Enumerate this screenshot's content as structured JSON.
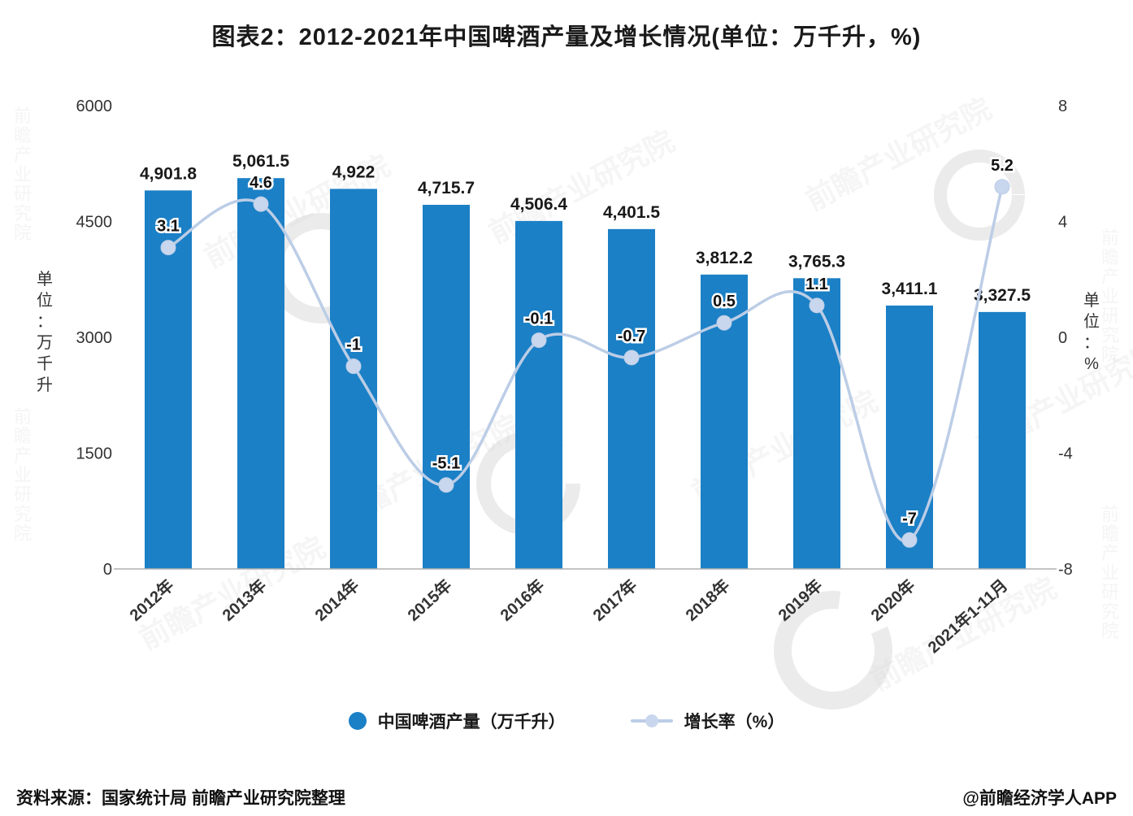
{
  "title": "图表2：2012-2021年中国啤酒产量及增长情况(单位：万千升，%)",
  "chart_data": {
    "type": "bar",
    "subtype": "bar+line combo, dual axis",
    "categories": [
      "2012年",
      "2013年",
      "2014年",
      "2015年",
      "2016年",
      "2017年",
      "2018年",
      "2019年",
      "2020年",
      "2021年1-11月"
    ],
    "series": [
      {
        "name": "中国啤酒产量（万千升）",
        "type": "bar",
        "axis": "left",
        "values": [
          4901.8,
          5061.5,
          4922,
          4715.7,
          4506.4,
          4401.5,
          3812.2,
          3765.3,
          3411.1,
          3327.5
        ],
        "labels": [
          "4,901.8",
          "5,061.5",
          "4,922",
          "4,715.7",
          "4,506.4",
          "4,401.5",
          "3,812.2",
          "3,765.3",
          "3,411.1",
          "3,327.5"
        ],
        "color": "#1b80c6"
      },
      {
        "name": "增长率（%）",
        "type": "line",
        "axis": "right",
        "values": [
          3.1,
          4.6,
          -1,
          -5.1,
          -0.1,
          -0.7,
          0.5,
          1.1,
          -7,
          5.2
        ],
        "labels": [
          "3.1",
          "4.6",
          "-1",
          "-5.1",
          "-0.1",
          "-0.7",
          "0.5",
          "1.1",
          "-7",
          "5.2"
        ],
        "color": "#bccde6",
        "marker_color": "#c8d6ee"
      }
    ],
    "left_axis": {
      "title": "单位：万千升",
      "min": 0,
      "max": 6000,
      "ticks": [
        0,
        1500,
        3000,
        4500,
        6000
      ],
      "tick_labels": [
        "0",
        "1500",
        "3000",
        "4500",
        "6000"
      ]
    },
    "right_axis": {
      "title": "单位：%",
      "min": -8,
      "max": 8,
      "ticks": [
        -8,
        -4,
        0,
        4,
        8
      ],
      "tick_labels": [
        "-8",
        "-4",
        "0",
        "4",
        "8"
      ]
    },
    "grid": false,
    "legend_position": "bottom"
  },
  "legend": {
    "bar_label": "中国啤酒产量（万千升）",
    "line_label": "增长率（%）"
  },
  "watermark": "前瞻产业研究院",
  "footer": {
    "source": "资料来源：国家统计局 前瞻产业研究院整理",
    "credit": "@前瞻经济学人APP"
  }
}
